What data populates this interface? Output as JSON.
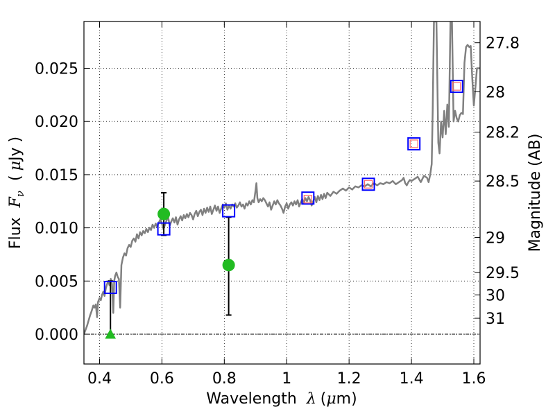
{
  "chart_data": {
    "type": "line",
    "title": "",
    "xlabel": "Wavelength",
    "xlabel_symbol": "λ",
    "xlabel_unit_open": "(",
    "xlabel_unit_mu": "μ",
    "xlabel_unit_rest": "m)",
    "ylabel": "Flux",
    "ylabel_symbol_main": "F",
    "ylabel_symbol_sub": "ν",
    "ylabel_unit_open": "(",
    "ylabel_unit_mu": "μ",
    "ylabel_unit_rest": "Jy )",
    "y2label": "Magnitude (AB)",
    "xlim": [
      0.35,
      1.62
    ],
    "ylim": [
      -0.0028,
      0.0294
    ],
    "x_ticks": [
      0.4,
      0.6,
      0.8,
      1.0,
      1.2,
      1.4,
      1.6
    ],
    "x_tick_labels": [
      "0.4",
      "0.6",
      "0.8",
      "1",
      "1.2",
      "1.4",
      "1.6"
    ],
    "y_ticks": [
      0.0,
      0.005,
      0.01,
      0.015,
      0.02,
      0.025
    ],
    "y_tick_labels": [
      "0.000",
      "0.005",
      "0.010",
      "0.015",
      "0.020",
      "0.025"
    ],
    "y2_ticks": [
      {
        "label": "27.8",
        "flux": 0.0274
      },
      {
        "label": "28",
        "flux": 0.0228
      },
      {
        "label": "28.2",
        "flux": 0.019
      },
      {
        "label": "28.5",
        "flux": 0.0144
      },
      {
        "label": "29",
        "flux": 0.0091
      },
      {
        "label": "29.5",
        "flux": 0.0058
      },
      {
        "label": "30",
        "flux": 0.0037
      },
      {
        "label": "31",
        "flux": 0.0015
      }
    ],
    "grid": true,
    "zero_line": true,
    "colors": {
      "sed": "#808080",
      "model_box": "#0000ff",
      "observed_box": "#ff6666",
      "detection": "#22bb22",
      "errorbar": "#000000"
    },
    "series": [
      {
        "kind": "line",
        "points": [
          [
            0.35,
            0.0
          ],
          [
            0.36,
            0.0008
          ],
          [
            0.37,
            0.0018
          ],
          [
            0.375,
            0.0022
          ],
          [
            0.38,
            0.0027
          ],
          [
            0.384,
            0.0025
          ],
          [
            0.388,
            0.0028
          ],
          [
            0.392,
            0.0016
          ],
          [
            0.395,
            0.003
          ],
          [
            0.4,
            0.0034
          ],
          [
            0.404,
            0.0032
          ],
          [
            0.408,
            0.0037
          ],
          [
            0.412,
            0.004
          ],
          [
            0.416,
            0.0036
          ],
          [
            0.42,
            0.0043
          ],
          [
            0.424,
            0.0047
          ],
          [
            0.428,
            0.005
          ],
          [
            0.432,
            0.0046
          ],
          [
            0.436,
            0.0052
          ],
          [
            0.44,
            0.0047
          ],
          [
            0.444,
            0.002
          ],
          [
            0.447,
            0.005
          ],
          [
            0.45,
            0.0055
          ],
          [
            0.454,
            0.0058
          ],
          [
            0.458,
            0.0054
          ],
          [
            0.462,
            0.0052
          ],
          [
            0.466,
            0.0025
          ],
          [
            0.47,
            0.0065
          ],
          [
            0.475,
            0.0072
          ],
          [
            0.48,
            0.0076
          ],
          [
            0.485,
            0.0074
          ],
          [
            0.49,
            0.0081
          ],
          [
            0.495,
            0.0084
          ],
          [
            0.5,
            0.0082
          ],
          [
            0.505,
            0.0088
          ],
          [
            0.51,
            0.009
          ],
          [
            0.515,
            0.0087
          ],
          [
            0.52,
            0.0094
          ],
          [
            0.525,
            0.009
          ],
          [
            0.53,
            0.0096
          ],
          [
            0.535,
            0.0093
          ],
          [
            0.54,
            0.0097
          ],
          [
            0.545,
            0.0095
          ],
          [
            0.55,
            0.0099
          ],
          [
            0.555,
            0.0096
          ],
          [
            0.56,
            0.01
          ],
          [
            0.565,
            0.0098
          ],
          [
            0.57,
            0.0103
          ],
          [
            0.575,
            0.01
          ],
          [
            0.58,
            0.0104
          ],
          [
            0.585,
            0.0101
          ],
          [
            0.59,
            0.0105
          ],
          [
            0.595,
            0.0108
          ],
          [
            0.6,
            0.0104
          ],
          [
            0.605,
            0.0099
          ],
          [
            0.61,
            0.0103
          ],
          [
            0.615,
            0.0107
          ],
          [
            0.62,
            0.011
          ],
          [
            0.625,
            0.0102
          ],
          [
            0.63,
            0.0106
          ],
          [
            0.635,
            0.0109
          ],
          [
            0.64,
            0.0105
          ],
          [
            0.645,
            0.011
          ],
          [
            0.65,
            0.0103
          ],
          [
            0.655,
            0.0108
          ],
          [
            0.66,
            0.0111
          ],
          [
            0.665,
            0.0107
          ],
          [
            0.67,
            0.0112
          ],
          [
            0.675,
            0.0109
          ],
          [
            0.68,
            0.0113
          ],
          [
            0.685,
            0.011
          ],
          [
            0.69,
            0.0114
          ],
          [
            0.695,
            0.0112
          ],
          [
            0.7,
            0.0108
          ],
          [
            0.705,
            0.0113
          ],
          [
            0.71,
            0.0116
          ],
          [
            0.715,
            0.0111
          ],
          [
            0.72,
            0.0115
          ],
          [
            0.725,
            0.0117
          ],
          [
            0.73,
            0.0112
          ],
          [
            0.735,
            0.0118
          ],
          [
            0.74,
            0.0114
          ],
          [
            0.745,
            0.0119
          ],
          [
            0.75,
            0.0115
          ],
          [
            0.755,
            0.012
          ],
          [
            0.76,
            0.0113
          ],
          [
            0.765,
            0.0117
          ],
          [
            0.77,
            0.0121
          ],
          [
            0.775,
            0.0116
          ],
          [
            0.78,
            0.012
          ],
          [
            0.785,
            0.0114
          ],
          [
            0.79,
            0.0118
          ],
          [
            0.795,
            0.0122
          ],
          [
            0.8,
            0.0119
          ],
          [
            0.805,
            0.0123
          ],
          [
            0.81,
            0.0117
          ],
          [
            0.815,
            0.0121
          ],
          [
            0.82,
            0.0118
          ],
          [
            0.825,
            0.0122
          ],
          [
            0.83,
            0.012
          ],
          [
            0.835,
            0.0123
          ],
          [
            0.84,
            0.0119
          ],
          [
            0.845,
            0.0121
          ],
          [
            0.85,
            0.0124
          ],
          [
            0.855,
            0.012
          ],
          [
            0.86,
            0.0122
          ],
          [
            0.865,
            0.0118
          ],
          [
            0.87,
            0.0123
          ],
          [
            0.875,
            0.0121
          ],
          [
            0.88,
            0.0125
          ],
          [
            0.885,
            0.0122
          ],
          [
            0.89,
            0.0126
          ],
          [
            0.895,
            0.0124
          ],
          [
            0.9,
            0.0135
          ],
          [
            0.903,
            0.0142
          ],
          [
            0.906,
            0.0128
          ],
          [
            0.91,
            0.0124
          ],
          [
            0.915,
            0.0127
          ],
          [
            0.92,
            0.0125
          ],
          [
            0.925,
            0.0128
          ],
          [
            0.93,
            0.0126
          ],
          [
            0.935,
            0.0123
          ],
          [
            0.94,
            0.012
          ],
          [
            0.945,
            0.0124
          ],
          [
            0.95,
            0.0117
          ],
          [
            0.955,
            0.0121
          ],
          [
            0.96,
            0.0125
          ],
          [
            0.965,
            0.0122
          ],
          [
            0.97,
            0.0126
          ],
          [
            0.975,
            0.0123
          ],
          [
            0.98,
            0.0121
          ],
          [
            0.985,
            0.0118
          ],
          [
            0.99,
            0.0114
          ],
          [
            0.995,
            0.012
          ],
          [
            1.0,
            0.0123
          ],
          [
            1.005,
            0.0118
          ],
          [
            1.01,
            0.0122
          ],
          [
            1.015,
            0.0124
          ],
          [
            1.02,
            0.0121
          ],
          [
            1.025,
            0.0125
          ],
          [
            1.03,
            0.0122
          ],
          [
            1.035,
            0.0126
          ],
          [
            1.04,
            0.012
          ],
          [
            1.045,
            0.0124
          ],
          [
            1.05,
            0.0127
          ],
          [
            1.055,
            0.0123
          ],
          [
            1.06,
            0.0128
          ],
          [
            1.065,
            0.0125
          ],
          [
            1.07,
            0.0129
          ],
          [
            1.075,
            0.0126
          ],
          [
            1.08,
            0.0121
          ],
          [
            1.085,
            0.0125
          ],
          [
            1.09,
            0.0129
          ],
          [
            1.095,
            0.0124
          ],
          [
            1.1,
            0.013
          ],
          [
            1.105,
            0.0126
          ],
          [
            1.11,
            0.0131
          ],
          [
            1.115,
            0.0127
          ],
          [
            1.12,
            0.0132
          ],
          [
            1.125,
            0.0128
          ],
          [
            1.13,
            0.0133
          ],
          [
            1.14,
            0.013
          ],
          [
            1.15,
            0.0134
          ],
          [
            1.16,
            0.0132
          ],
          [
            1.17,
            0.0135
          ],
          [
            1.18,
            0.0137
          ],
          [
            1.19,
            0.0135
          ],
          [
            1.2,
            0.0138
          ],
          [
            1.21,
            0.0136
          ],
          [
            1.22,
            0.0139
          ],
          [
            1.23,
            0.0138
          ],
          [
            1.24,
            0.014
          ],
          [
            1.25,
            0.0139
          ],
          [
            1.26,
            0.0141
          ],
          [
            1.27,
            0.0139
          ],
          [
            1.28,
            0.0142
          ],
          [
            1.29,
            0.014
          ],
          [
            1.3,
            0.0142
          ],
          [
            1.31,
            0.0141
          ],
          [
            1.32,
            0.0143
          ],
          [
            1.33,
            0.0142
          ],
          [
            1.34,
            0.0144
          ],
          [
            1.35,
            0.0141
          ],
          [
            1.36,
            0.0143
          ],
          [
            1.37,
            0.0145
          ],
          [
            1.375,
            0.0147
          ],
          [
            1.38,
            0.0142
          ],
          [
            1.385,
            0.014
          ],
          [
            1.39,
            0.0143
          ],
          [
            1.395,
            0.0145
          ],
          [
            1.4,
            0.0144
          ],
          [
            1.41,
            0.0146
          ],
          [
            1.42,
            0.0148
          ],
          [
            1.43,
            0.0143
          ],
          [
            1.44,
            0.0149
          ],
          [
            1.45,
            0.0147
          ],
          [
            1.455,
            0.0143
          ],
          [
            1.46,
            0.015
          ],
          [
            1.465,
            0.016
          ],
          [
            1.468,
            0.021
          ],
          [
            1.472,
            0.0294
          ],
          [
            1.48,
            0.0294
          ],
          [
            1.486,
            0.018
          ],
          [
            1.49,
            0.017
          ],
          [
            1.495,
            0.02
          ],
          [
            1.5,
            0.0185
          ],
          [
            1.505,
            0.021
          ],
          [
            1.51,
            0.0188
          ],
          [
            1.515,
            0.0216
          ],
          [
            1.52,
            0.0195
          ],
          [
            1.525,
            0.0294
          ],
          [
            1.53,
            0.0294
          ],
          [
            1.535,
            0.02
          ],
          [
            1.54,
            0.021
          ],
          [
            1.545,
            0.0203
          ],
          [
            1.55,
            0.02
          ],
          [
            1.555,
            0.0206
          ],
          [
            1.56,
            0.0208
          ],
          [
            1.565,
            0.0207
          ],
          [
            1.57,
            0.0255
          ],
          [
            1.575,
            0.027
          ],
          [
            1.58,
            0.0272
          ],
          [
            1.585,
            0.027
          ],
          [
            1.59,
            0.0271
          ],
          [
            1.595,
            0.024
          ],
          [
            1.6,
            0.0215
          ],
          [
            1.605,
            0.0232
          ],
          [
            1.61,
            0.025
          ],
          [
            1.615,
            0.025
          ],
          [
            1.62,
            0.025
          ]
        ]
      },
      {
        "kind": "model-box",
        "points": [
          [
            0.435,
            0.0044
          ],
          [
            0.606,
            0.0099
          ],
          [
            0.814,
            0.0116
          ],
          [
            1.068,
            0.0128
          ],
          [
            1.262,
            0.0141
          ],
          [
            1.408,
            0.0179
          ],
          [
            1.545,
            0.0233
          ]
        ]
      },
      {
        "kind": "observed-box",
        "points": [
          [
            1.068,
            0.0127
          ],
          [
            1.262,
            0.0141
          ],
          [
            1.408,
            0.0179
          ],
          [
            1.545,
            0.0233
          ]
        ]
      },
      {
        "kind": "detection",
        "points": [
          [
            0.606,
            0.0113
          ],
          [
            0.814,
            0.0065
          ]
        ],
        "errors": [
          [
            0.0093,
            0.0133
          ],
          [
            0.0018,
            0.011
          ]
        ]
      },
      {
        "kind": "upper-limit",
        "points": [
          [
            0.435,
            0.0
          ]
        ],
        "errors": [
          [
            0.0,
            0.005
          ]
        ]
      }
    ]
  }
}
